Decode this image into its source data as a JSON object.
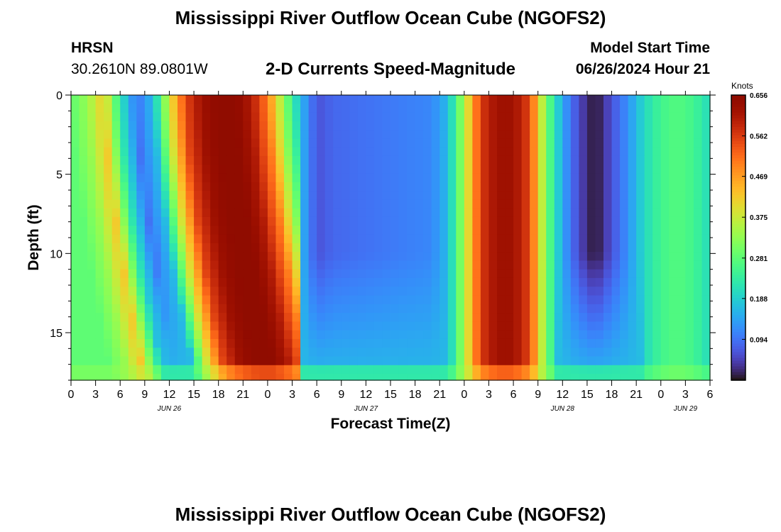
{
  "page": {
    "title": "Mississippi River Outflow Ocean Cube (NGOFS2)",
    "bottom_title": "Mississippi River Outflow Ocean Cube (NGOFS2)",
    "station_id": "HRSN",
    "station_coords": "30.2610N  89.0801W",
    "plot_subtitle": "2-D Currents Speed-Magnitude",
    "model_start_label": "Model Start Time",
    "model_start_value": "06/26/2024 Hour 21"
  },
  "chart_data": {
    "type": "heatmap",
    "title": "2-D Currents Speed-Magnitude",
    "xlabel": "Forecast Time(Z)",
    "ylabel": "Depth (ft)",
    "x_hours_range": [
      0,
      78
    ],
    "x_tick_labels": [
      "0",
      "3",
      "6",
      "9",
      "12",
      "15",
      "18",
      "21",
      "0",
      "3",
      "6",
      "9",
      "12",
      "15",
      "18",
      "21",
      "0",
      "3",
      "6",
      "9",
      "12",
      "15",
      "18",
      "21",
      "0",
      "3",
      "6"
    ],
    "x_date_labels": [
      {
        "label": "JUN 26",
        "hour": 12
      },
      {
        "label": "JUN 27",
        "hour": 36
      },
      {
        "label": "JUN 28",
        "hour": 60
      },
      {
        "label": "JUN 29",
        "hour": 75
      }
    ],
    "ylim": [
      0,
      18
    ],
    "y_ticks": [
      0,
      5,
      10,
      15
    ],
    "y_tick_labels": [
      "0",
      "5",
      "10",
      "15"
    ],
    "colorbar": {
      "unit_label": "Knots",
      "min": 0.0,
      "max": 0.656,
      "tick_values": [
        0.656,
        0.562,
        0.469,
        0.375,
        0.281,
        0.188,
        0.094
      ],
      "tick_labels": [
        "0.656",
        "0.562",
        "0.469",
        "0.375",
        "0.281",
        "0.188",
        "0.094"
      ],
      "colormap": "turbo"
    },
    "surface_speed_knots": [
      {
        "hour": 0,
        "speed": 0.28
      },
      {
        "hour": 2,
        "speed": 0.33
      },
      {
        "hour": 4,
        "speed": 0.42
      },
      {
        "hour": 6,
        "speed": 0.22
      },
      {
        "hour": 8,
        "speed": 0.09
      },
      {
        "hour": 10,
        "speed": 0.16
      },
      {
        "hour": 12,
        "speed": 0.38
      },
      {
        "hour": 14,
        "speed": 0.55
      },
      {
        "hour": 16,
        "speed": 0.62
      },
      {
        "hour": 18,
        "speed": 0.65
      },
      {
        "hour": 20,
        "speed": 0.65
      },
      {
        "hour": 22,
        "speed": 0.6
      },
      {
        "hour": 24,
        "speed": 0.5
      },
      {
        "hour": 26,
        "speed": 0.32
      },
      {
        "hour": 28,
        "speed": 0.16
      },
      {
        "hour": 30,
        "speed": 0.06
      },
      {
        "hour": 32,
        "speed": 0.08
      },
      {
        "hour": 36,
        "speed": 0.09
      },
      {
        "hour": 40,
        "speed": 0.1
      },
      {
        "hour": 44,
        "speed": 0.11
      },
      {
        "hour": 46,
        "speed": 0.16
      },
      {
        "hour": 48,
        "speed": 0.35
      },
      {
        "hour": 50,
        "speed": 0.56
      },
      {
        "hour": 52,
        "speed": 0.62
      },
      {
        "hour": 54,
        "speed": 0.62
      },
      {
        "hour": 56,
        "speed": 0.55
      },
      {
        "hour": 58,
        "speed": 0.3
      },
      {
        "hour": 60,
        "speed": 0.14
      },
      {
        "hour": 62,
        "speed": 0.05
      },
      {
        "hour": 64,
        "speed": 0.0
      },
      {
        "hour": 66,
        "speed": 0.06
      },
      {
        "hour": 68,
        "speed": 0.12
      },
      {
        "hour": 70,
        "speed": 0.2
      },
      {
        "hour": 72,
        "speed": 0.25
      },
      {
        "hour": 74,
        "speed": 0.27
      },
      {
        "hour": 76,
        "speed": 0.25
      },
      {
        "hour": 78,
        "speed": 0.2
      }
    ]
  }
}
